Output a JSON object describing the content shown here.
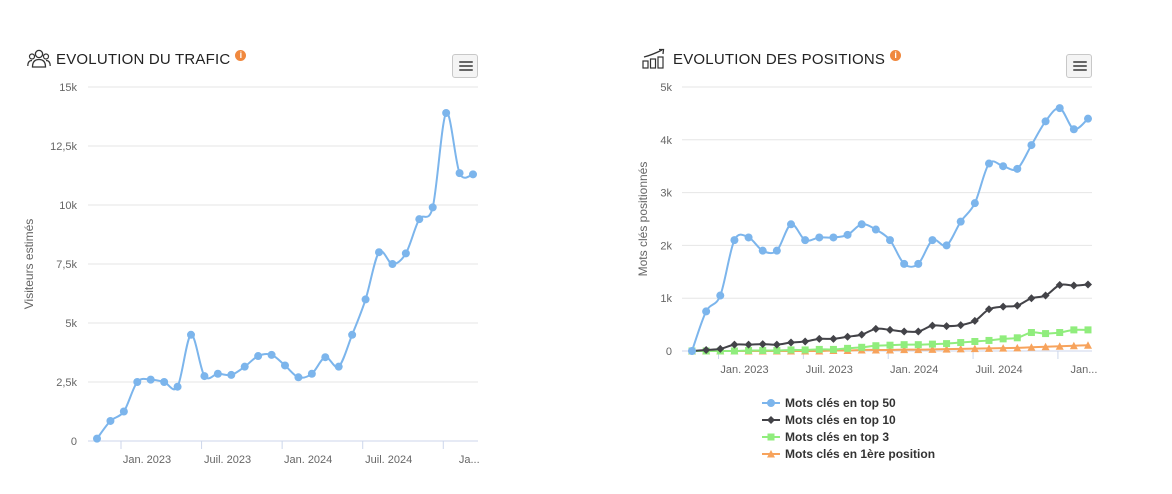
{
  "traffic": {
    "title": "EVOLUTION DU TRAFIC",
    "info": "i",
    "title_icon": "users-icon",
    "menu_icon": "hamburger-icon"
  },
  "positions": {
    "title": "EVOLUTION DES POSITIONS",
    "info": "i",
    "title_icon": "bar-chart-trend-icon",
    "menu_icon": "hamburger-icon"
  },
  "chart_data": [
    {
      "type": "line",
      "title": "EVOLUTION DU TRAFIC",
      "xlabel": "",
      "ylabel": "Visiteurs estimés",
      "ylim": [
        0,
        15000
      ],
      "yticks": [
        0,
        2500,
        5000,
        7500,
        10000,
        12500,
        15000
      ],
      "ytick_labels": [
        "0",
        "2,5k",
        "5k",
        "7,5k",
        "10k",
        "12,5k",
        "15k"
      ],
      "xtick_labels": [
        {
          "label": "Jan. 2023",
          "index": 4
        },
        {
          "label": "Juil. 2023",
          "index": 10
        },
        {
          "label": "Jan. 2024",
          "index": 16
        },
        {
          "label": "Juil. 2024",
          "index": 22
        },
        {
          "label": "Ja...",
          "index": 28
        }
      ],
      "grid": true,
      "color": "#7cb5ec",
      "series": [
        {
          "values": [
            100,
            850,
            1250,
            2500,
            2600,
            2500,
            2300,
            4500,
            2750,
            2850,
            2800,
            3150,
            3600,
            3650,
            3200,
            2700,
            2850,
            3550,
            3150,
            4500,
            6000,
            8000,
            7500,
            7950,
            9400,
            9900,
            13900,
            11350,
            11300
          ]
        }
      ]
    },
    {
      "type": "line",
      "title": "EVOLUTION DES POSITIONS",
      "xlabel": "",
      "ylabel": "Mots clés positionnés",
      "ylim": [
        0,
        5000
      ],
      "yticks": [
        0,
        1000,
        2000,
        3000,
        4000,
        5000
      ],
      "ytick_labels": [
        "0",
        "1k",
        "2k",
        "3k",
        "4k",
        "5k"
      ],
      "xtick_labels": [
        {
          "label": "Jan. 2023",
          "index": 4
        },
        {
          "label": "Juil. 2023",
          "index": 10
        },
        {
          "label": "Jan. 2024",
          "index": 16
        },
        {
          "label": "Juil. 2024",
          "index": 22
        },
        {
          "label": "Jan...",
          "index": 28
        }
      ],
      "grid": true,
      "legend": "bottom",
      "series": [
        {
          "name": "Mots clés en top 50",
          "color": "#7cb5ec",
          "marker": "circle",
          "values": [
            0,
            750,
            1050,
            2100,
            2150,
            1900,
            1900,
            2400,
            2100,
            2150,
            2150,
            2200,
            2400,
            2300,
            2100,
            1650,
            1650,
            2100,
            2000,
            2450,
            2800,
            3550,
            3500,
            3450,
            3900,
            4350,
            4600,
            4200,
            4400
          ]
        },
        {
          "name": "Mots clés en top 10",
          "color": "#434348",
          "marker": "diamond",
          "values": [
            0,
            20,
            40,
            120,
            120,
            130,
            120,
            160,
            180,
            230,
            230,
            270,
            310,
            420,
            400,
            370,
            370,
            480,
            470,
            490,
            570,
            790,
            840,
            860,
            1000,
            1050,
            1250,
            1240,
            1260
          ]
        },
        {
          "name": "Mots clés en top 3",
          "color": "#90ed7d",
          "marker": "square",
          "values": [
            0,
            0,
            0,
            0,
            10,
            10,
            10,
            20,
            20,
            30,
            30,
            50,
            70,
            100,
            110,
            120,
            120,
            130,
            140,
            160,
            180,
            200,
            230,
            250,
            350,
            330,
            350,
            400,
            400
          ]
        },
        {
          "name": "Mots clés en 1ère position",
          "color": "#f7a35c",
          "marker": "triangle",
          "values": [
            0,
            0,
            0,
            0,
            0,
            0,
            0,
            0,
            0,
            0,
            10,
            10,
            20,
            20,
            20,
            25,
            25,
            30,
            35,
            40,
            45,
            50,
            55,
            60,
            70,
            80,
            90,
            100,
            110
          ]
        }
      ]
    }
  ]
}
